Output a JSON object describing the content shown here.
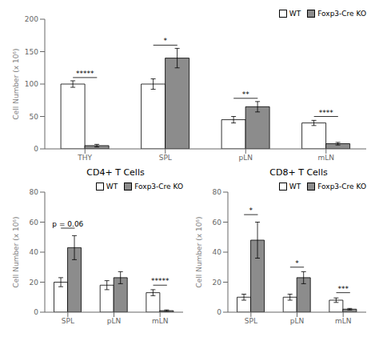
{
  "chart_data": [
    {
      "type": "bar",
      "categories": [
        "THY",
        "SPL",
        "pLN",
        "mLN"
      ],
      "series": [
        {
          "name": "WT",
          "color": "#ffffff",
          "values": [
            100,
            100,
            45,
            40
          ],
          "errors": [
            5,
            8,
            5,
            4
          ]
        },
        {
          "name": "Foxp3-Cre KO",
          "color": "#8c8c8c",
          "values": [
            5,
            140,
            65,
            8
          ],
          "errors": [
            2,
            15,
            8,
            2
          ]
        }
      ],
      "ylabel": "Cell Number (x 10⁶)",
      "ylim": [
        0,
        200
      ],
      "yticks": [
        0,
        50,
        100,
        150,
        200
      ],
      "legend": "upper right",
      "annotations": [
        {
          "text": "*****",
          "category": "THY",
          "y": 110
        },
        {
          "text": "*",
          "category": "SPL",
          "y": 160
        },
        {
          "text": "**",
          "category": "pLN",
          "y": 78
        },
        {
          "text": "****",
          "category": "mLN",
          "y": 50
        }
      ]
    },
    {
      "type": "bar",
      "title": "CD4+ T Cells",
      "categories": [
        "SPL",
        "pLN",
        "mLN"
      ],
      "series": [
        {
          "name": "WT",
          "color": "#ffffff",
          "values": [
            20,
            18,
            13
          ],
          "errors": [
            3,
            3,
            2
          ]
        },
        {
          "name": "Foxp3-Cre KO",
          "color": "#8c8c8c",
          "values": [
            43,
            23,
            1
          ],
          "errors": [
            8,
            4,
            0.5
          ]
        }
      ],
      "ylabel": "Cell Number (x 10⁶)",
      "ylim": [
        0,
        80
      ],
      "yticks": [
        0,
        20,
        40,
        60,
        80
      ],
      "legend": "upper right",
      "annotations": [
        {
          "text": "p = 0.06",
          "category": "SPL",
          "y": 56
        },
        {
          "text": "*****",
          "category": "mLN",
          "y": 18
        }
      ]
    },
    {
      "type": "bar",
      "title": "CD8+ T Cells",
      "categories": [
        "SPL",
        "pLN",
        "mLN"
      ],
      "series": [
        {
          "name": "WT",
          "color": "#ffffff",
          "values": [
            10,
            10,
            8
          ],
          "errors": [
            2,
            2,
            1.5
          ]
        },
        {
          "name": "Foxp3-Cre KO",
          "color": "#8c8c8c",
          "values": [
            48,
            23,
            2
          ],
          "errors": [
            12,
            4,
            0.5
          ]
        }
      ],
      "ylabel": "Cell Number (x 10⁶)",
      "ylim": [
        0,
        80
      ],
      "yticks": [
        0,
        20,
        40,
        60,
        80
      ],
      "legend": "upper right",
      "annotations": [
        {
          "text": "*",
          "category": "SPL",
          "y": 65
        },
        {
          "text": "*",
          "category": "pLN",
          "y": 30
        },
        {
          "text": "***",
          "category": "mLN",
          "y": 13
        }
      ]
    }
  ]
}
